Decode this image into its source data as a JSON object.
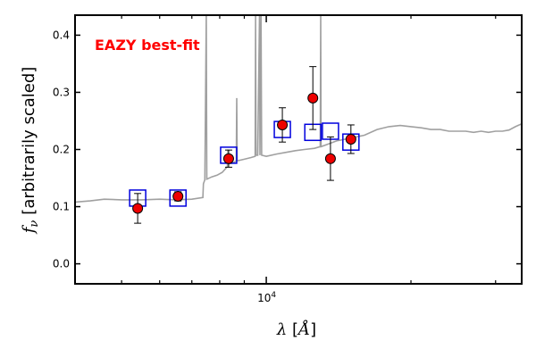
{
  "chart_data": {
    "type": "scatter",
    "title": "",
    "annotation": "EAZY best-fit",
    "annotation_color": "#ff0000",
    "xlabel": {
      "symbol": "λ",
      "unit": "Å"
    },
    "ylabel": {
      "symbol": "f",
      "subscript": "ν",
      "text": "[arbitrarily scaled]"
    },
    "x_scale": "log",
    "xlim": [
      4000,
      34000
    ],
    "ylim": [
      -0.035,
      0.435
    ],
    "x_major_tick": 10000,
    "x_tick_label": {
      "base": "10",
      "exp": "4"
    },
    "y_ticks": [
      0.0,
      0.1,
      0.2,
      0.3,
      0.4
    ],
    "y_tick_labels": [
      "0.0",
      "0.1",
      "0.2",
      "0.3",
      "0.4"
    ],
    "grid": false,
    "colors": {
      "model": "#a0a0a0",
      "model_flux": "#0000dd",
      "observed": "#ee0000",
      "errorbar": "#000000"
    },
    "model_flux": [
      {
        "x": 5400,
        "y": 0.115
      },
      {
        "x": 6550,
        "y": 0.115
      },
      {
        "x": 8350,
        "y": 0.19
      },
      {
        "x": 10800,
        "y": 0.235
      },
      {
        "x": 12500,
        "y": 0.23
      },
      {
        "x": 13600,
        "y": 0.232
      },
      {
        "x": 15000,
        "y": 0.213
      }
    ],
    "observed": [
      {
        "x": 5400,
        "y": 0.097,
        "err": 0.026
      },
      {
        "x": 6550,
        "y": 0.118,
        "err": 0.008
      },
      {
        "x": 8350,
        "y": 0.184,
        "err": 0.015
      },
      {
        "x": 10800,
        "y": 0.243,
        "err": 0.03
      },
      {
        "x": 12500,
        "y": 0.29,
        "err": 0.055
      },
      {
        "x": 13600,
        "y": 0.184,
        "err": 0.038
      },
      {
        "x": 15000,
        "y": 0.218,
        "err": 0.025
      }
    ],
    "model_spectrum": [
      [
        4000,
        0.108
      ],
      [
        4300,
        0.11
      ],
      [
        4600,
        0.113
      ],
      [
        5000,
        0.112
      ],
      [
        5500,
        0.112
      ],
      [
        6000,
        0.113
      ],
      [
        6500,
        0.112
      ],
      [
        7000,
        0.113
      ],
      [
        7380,
        0.116
      ],
      [
        7400,
        0.14
      ],
      [
        7450,
        0.147
      ],
      [
        7500,
        0.434
      ],
      [
        7520,
        0.148
      ],
      [
        7700,
        0.152
      ],
      [
        7900,
        0.155
      ],
      [
        8100,
        0.16
      ],
      [
        8300,
        0.17
      ],
      [
        8320,
        0.2
      ],
      [
        8340,
        0.175
      ],
      [
        8500,
        0.176
      ],
      [
        8660,
        0.18
      ],
      [
        8680,
        0.29
      ],
      [
        8700,
        0.18
      ],
      [
        9000,
        0.183
      ],
      [
        9300,
        0.186
      ],
      [
        9480,
        0.188
      ],
      [
        9500,
        0.434
      ],
      [
        9520,
        0.19
      ],
      [
        9600,
        0.19
      ],
      [
        9680,
        0.434
      ],
      [
        9700,
        0.19
      ],
      [
        9750,
        0.434
      ],
      [
        9780,
        0.19
      ],
      [
        10000,
        0.188
      ],
      [
        10500,
        0.192
      ],
      [
        11000,
        0.195
      ],
      [
        11500,
        0.198
      ],
      [
        12000,
        0.2
      ],
      [
        12600,
        0.202
      ],
      [
        12950,
        0.205
      ],
      [
        12980,
        0.434
      ],
      [
        13000,
        0.205
      ],
      [
        13500,
        0.21
      ],
      [
        14000,
        0.215
      ],
      [
        15000,
        0.22
      ],
      [
        16000,
        0.225
      ],
      [
        17000,
        0.235
      ],
      [
        18000,
        0.24
      ],
      [
        19000,
        0.242
      ],
      [
        20000,
        0.24
      ],
      [
        21000,
        0.238
      ],
      [
        22000,
        0.235
      ],
      [
        23000,
        0.235
      ],
      [
        24000,
        0.232
      ],
      [
        25000,
        0.232
      ],
      [
        26000,
        0.232
      ],
      [
        27000,
        0.23
      ],
      [
        28000,
        0.232
      ],
      [
        29000,
        0.23
      ],
      [
        30000,
        0.232
      ],
      [
        31000,
        0.232
      ],
      [
        32000,
        0.234
      ],
      [
        33000,
        0.24
      ],
      [
        34000,
        0.245
      ]
    ]
  }
}
